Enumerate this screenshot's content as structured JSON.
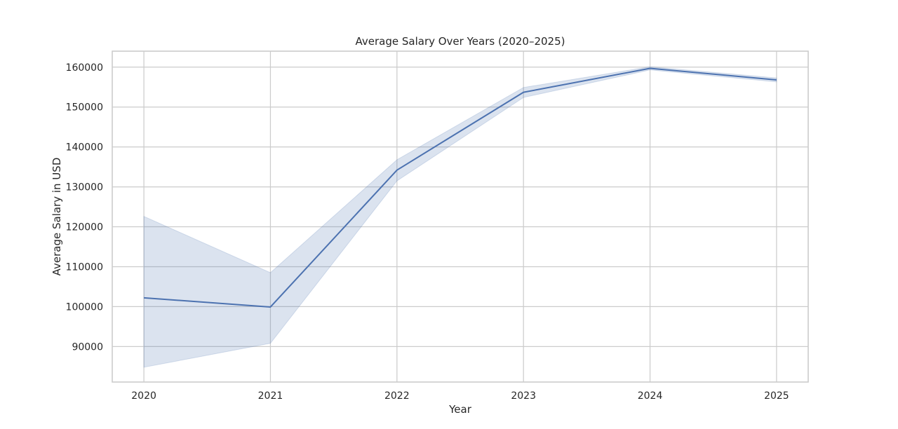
{
  "chart_data": {
    "type": "line",
    "title": "Average Salary Over Years (2020–2025)",
    "xlabel": "Year",
    "ylabel": "Average Salary in USD",
    "x": [
      2020,
      2021,
      2022,
      2023,
      2024,
      2025
    ],
    "x_tick_labels": [
      "2020",
      "2021",
      "2022",
      "2023",
      "2024",
      "2025"
    ],
    "y_ticks": [
      90000,
      100000,
      110000,
      120000,
      130000,
      140000,
      150000,
      160000
    ],
    "y_tick_labels": [
      "90000",
      "100000",
      "110000",
      "120000",
      "130000",
      "140000",
      "150000",
      "160000"
    ],
    "xlim": [
      2019.75,
      2025.25
    ],
    "ylim": [
      81100,
      164000
    ],
    "grid": true,
    "legend": "none",
    "series": [
      {
        "values": [
          102200,
          99900,
          134200,
          153700,
          159700,
          156800
        ],
        "ci_lower": [
          84800,
          90800,
          131500,
          152400,
          159300,
          156300
        ],
        "ci_upper": [
          122600,
          108500,
          136800,
          154900,
          160100,
          157300
        ],
        "color": "#4c72b0"
      }
    ]
  }
}
